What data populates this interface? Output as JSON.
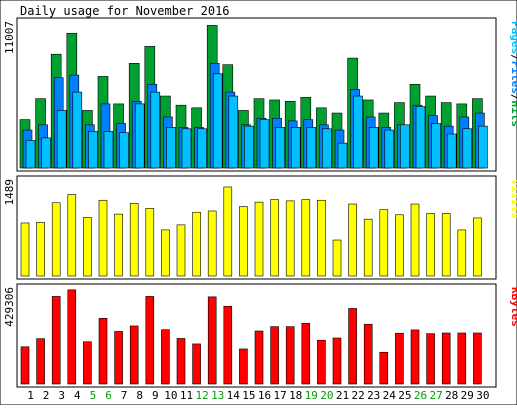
{
  "title": "Daily usage for November 2016",
  "colors": {
    "background": "#ffffff",
    "panel_bg": "#ffffff",
    "frame": "#000000",
    "hits": "#00a030",
    "files": "#0080ff",
    "pages": "#00c0ff",
    "visits": "#ffff00",
    "kbytes": "#ff0000",
    "weekend_label": "#00a000",
    "weekday_label": "#000000"
  },
  "chart_data": [
    {
      "type": "bar",
      "name": "hits-files-pages",
      "ymax_label": "11007",
      "ylim": [
        0,
        11007
      ],
      "legend": "Pages/Files/Hits",
      "x": [
        1,
        2,
        3,
        4,
        5,
        6,
        7,
        8,
        9,
        10,
        11,
        12,
        13,
        14,
        15,
        16,
        17,
        18,
        19,
        20,
        21,
        22,
        23,
        24,
        25,
        26,
        27,
        28,
        29,
        30
      ],
      "series": [
        {
          "name": "Hits",
          "color_key": "hits",
          "values": [
            3700,
            5300,
            8700,
            10300,
            4400,
            7000,
            4900,
            8000,
            9300,
            5500,
            4800,
            4600,
            10900,
            7900,
            4400,
            5300,
            5200,
            5100,
            5400,
            4600,
            4200,
            8400,
            5200,
            4200,
            5000,
            6400,
            5500,
            5000,
            4900,
            5300
          ]
        },
        {
          "name": "Files",
          "color_key": "files",
          "values": [
            2900,
            3300,
            6900,
            7100,
            3300,
            4900,
            3400,
            5100,
            6400,
            3900,
            3100,
            3100,
            8000,
            5800,
            3300,
            3800,
            3800,
            3600,
            3700,
            3300,
            2900,
            6000,
            3900,
            3100,
            3300,
            4800,
            4000,
            3200,
            3900,
            4200
          ]
        },
        {
          "name": "Pages",
          "color_key": "pages",
          "values": [
            2100,
            2300,
            4400,
            5800,
            2800,
            2800,
            2700,
            4900,
            5800,
            3100,
            3000,
            3000,
            7200,
            5500,
            3200,
            3700,
            3100,
            3100,
            3100,
            3000,
            1900,
            5500,
            3100,
            2900,
            3300,
            4700,
            3400,
            2600,
            3000,
            3200
          ]
        }
      ],
      "weekend_days": [
        5,
        6,
        12,
        13,
        19,
        20,
        26,
        27
      ]
    },
    {
      "type": "bar",
      "name": "visits",
      "ymax_label": "1489",
      "ylim": [
        0,
        1489
      ],
      "legend": "Visits",
      "x": [
        1,
        2,
        3,
        4,
        5,
        6,
        7,
        8,
        9,
        10,
        11,
        12,
        13,
        14,
        15,
        16,
        17,
        18,
        19,
        20,
        21,
        22,
        23,
        24,
        25,
        26,
        27,
        28,
        29,
        30
      ],
      "series": [
        {
          "name": "Visits",
          "color_key": "visits",
          "values": [
            840,
            850,
            1160,
            1290,
            930,
            1200,
            980,
            1150,
            1070,
            730,
            810,
            1010,
            1030,
            1410,
            1100,
            1170,
            1210,
            1190,
            1210,
            1200,
            570,
            1140,
            900,
            1050,
            970,
            1140,
            990,
            990,
            730,
            920
          ]
        }
      ]
    },
    {
      "type": "bar",
      "name": "kbytes",
      "ymax_label": "429306",
      "ylim": [
        0,
        429306
      ],
      "legend": "KBytes",
      "x": [
        1,
        2,
        3,
        4,
        5,
        6,
        7,
        8,
        9,
        10,
        11,
        12,
        13,
        14,
        15,
        16,
        17,
        18,
        19,
        20,
        21,
        22,
        23,
        24,
        25,
        26,
        27,
        28,
        29,
        30
      ],
      "series": [
        {
          "name": "KBytes",
          "color_key": "kbytes",
          "values": [
            170000,
            207000,
            400000,
            430000,
            193000,
            300000,
            240000,
            265000,
            400000,
            248000,
            208000,
            183000,
            398000,
            355000,
            160000,
            242000,
            262000,
            262000,
            277000,
            200000,
            210000,
            345000,
            273000,
            145000,
            232000,
            247000,
            230000,
            233000,
            233000,
            233000
          ]
        }
      ]
    }
  ],
  "x_labels": [
    "1",
    "2",
    "3",
    "4",
    "5",
    "6",
    "7",
    "8",
    "9",
    "10",
    "11",
    "12",
    "13",
    "14",
    "15",
    "16",
    "17",
    "18",
    "19",
    "20",
    "21",
    "22",
    "23",
    "24",
    "25",
    "26",
    "27",
    "28",
    "29",
    "30"
  ]
}
